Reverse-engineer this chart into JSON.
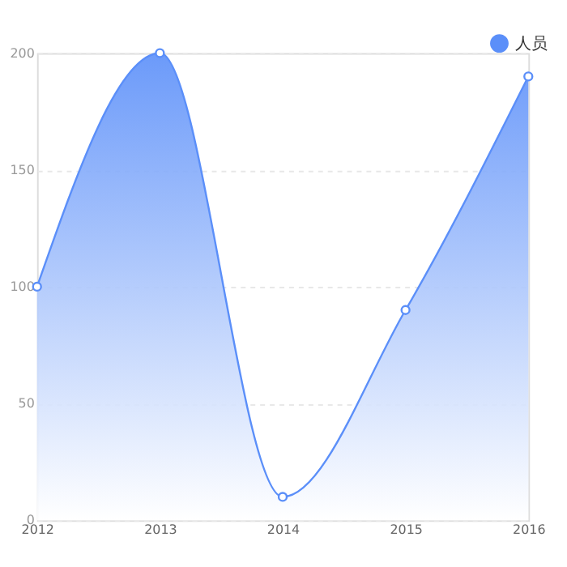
{
  "chart_data": {
    "type": "area",
    "categories": [
      "2012",
      "2013",
      "2014",
      "2015",
      "2016"
    ],
    "series": [
      {
        "name": "人员",
        "color": "#5b8ff9",
        "values": [
          100,
          200,
          10,
          90,
          190
        ]
      }
    ],
    "ylim": [
      0,
      200
    ],
    "yticks": [
      0,
      50,
      100,
      150,
      200
    ],
    "grid": "y",
    "legend": "top right",
    "marker": "circle",
    "line_style": "solid"
  }
}
